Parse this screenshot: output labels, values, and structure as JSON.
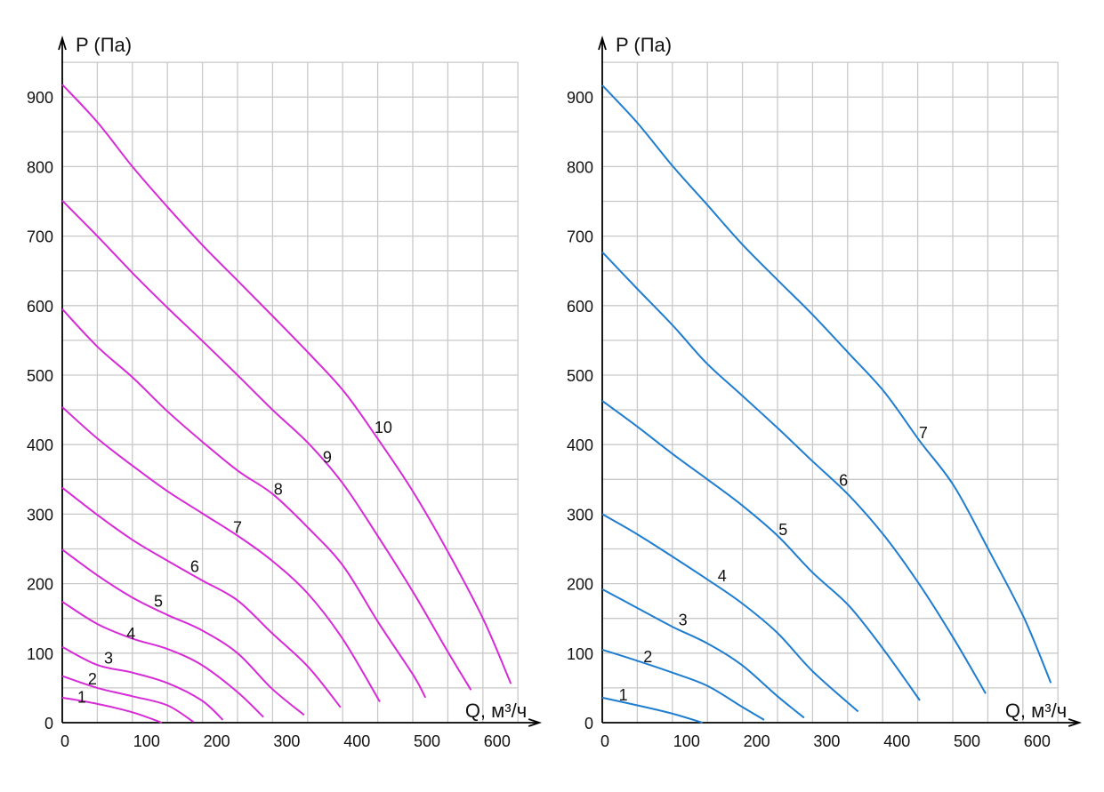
{
  "chart_data": [
    {
      "type": "line",
      "title": "",
      "xlabel": "Q, м³/ч",
      "ylabel": "P (Па)",
      "xlim": [
        0,
        650
      ],
      "ylim": [
        0,
        950
      ],
      "xticks": [
        "0",
        "100",
        "200",
        "300",
        "400",
        "500",
        "600"
      ],
      "yticks": [
        "0",
        "100",
        "200",
        "300",
        "400",
        "500",
        "600",
        "700",
        "800",
        "900"
      ],
      "grid": true,
      "color": "#d62bd6",
      "series": [
        {
          "name": "1",
          "label_at": [
            28,
            38
          ],
          "points": [
            [
              0,
              36
            ],
            [
              50,
              27
            ],
            [
              100,
              15
            ],
            [
              142,
              0
            ]
          ]
        },
        {
          "name": "2",
          "label_at": [
            43,
            64
          ],
          "points": [
            [
              0,
              67
            ],
            [
              50,
              50
            ],
            [
              100,
              38
            ],
            [
              150,
              25
            ],
            [
              187,
              1
            ]
          ]
        },
        {
          "name": "3",
          "label_at": [
            66,
            94
          ],
          "points": [
            [
              0,
              109
            ],
            [
              50,
              83
            ],
            [
              100,
              72
            ],
            [
              150,
              57
            ],
            [
              199,
              32
            ],
            [
              229,
              4
            ]
          ]
        },
        {
          "name": "4",
          "label_at": [
            98,
            129
          ],
          "points": [
            [
              0,
              174
            ],
            [
              50,
              142
            ],
            [
              100,
              121
            ],
            [
              150,
              106
            ],
            [
              199,
              83
            ],
            [
              250,
              44
            ],
            [
              287,
              8
            ]
          ]
        },
        {
          "name": "5",
          "label_at": [
            137,
            176
          ],
          "points": [
            [
              0,
              249
            ],
            [
              50,
              212
            ],
            [
              100,
              180
            ],
            [
              150,
              155
            ],
            [
              199,
              133
            ],
            [
              250,
              100
            ],
            [
              299,
              49
            ],
            [
              345,
              11
            ]
          ]
        },
        {
          "name": "6",
          "label_at": [
            189,
            226
          ],
          "points": [
            [
              0,
              338
            ],
            [
              50,
              299
            ],
            [
              100,
              263
            ],
            [
              150,
              233
            ],
            [
              199,
              205
            ],
            [
              250,
              176
            ],
            [
              299,
              129
            ],
            [
              351,
              80
            ],
            [
              397,
              22
            ]
          ]
        },
        {
          "name": "7",
          "label_at": [
            250,
            282
          ],
          "points": [
            [
              0,
              454
            ],
            [
              51,
              408
            ],
            [
              101,
              369
            ],
            [
              150,
              333
            ],
            [
              200,
              301
            ],
            [
              250,
              269
            ],
            [
              298,
              234
            ],
            [
              350,
              186
            ],
            [
              401,
              119
            ],
            [
              453,
              30
            ]
          ]
        },
        {
          "name": "8",
          "label_at": [
            308,
            337
          ],
          "points": [
            [
              0,
              595
            ],
            [
              51,
              540
            ],
            [
              101,
              496
            ],
            [
              150,
              448
            ],
            [
              200,
              404
            ],
            [
              251,
              362
            ],
            [
              300,
              329
            ],
            [
              351,
              280
            ],
            [
              401,
              225
            ],
            [
              451,
              144
            ],
            [
              501,
              68
            ],
            [
              518,
              36
            ]
          ]
        },
        {
          "name": "9",
          "label_at": [
            378,
            383
          ],
          "points": [
            [
              0,
              751
            ],
            [
              51,
              699
            ],
            [
              101,
              646
            ],
            [
              150,
              597
            ],
            [
              200,
              549
            ],
            [
              251,
              499
            ],
            [
              300,
              450
            ],
            [
              352,
              401
            ],
            [
              401,
              343
            ],
            [
              451,
              267
            ],
            [
              501,
              187
            ],
            [
              550,
              102
            ],
            [
              583,
              47
            ]
          ]
        },
        {
          "name": "10",
          "label_at": [
            458,
            426
          ],
          "points": [
            [
              0,
              918
            ],
            [
              50,
              864
            ],
            [
              100,
              800
            ],
            [
              150,
              742
            ],
            [
              200,
              687
            ],
            [
              250,
              636
            ],
            [
              300,
              585
            ],
            [
              353,
              530
            ],
            [
              403,
              475
            ],
            [
              451,
              407
            ],
            [
              500,
              333
            ],
            [
              550,
              246
            ],
            [
              601,
              148
            ],
            [
              640,
              56
            ]
          ]
        }
      ]
    },
    {
      "type": "line",
      "title": "",
      "xlabel": "Q, м³/ч",
      "ylabel": "P (Па)",
      "xlim": [
        0,
        650
      ],
      "ylim": [
        0,
        950
      ],
      "xticks": [
        "0",
        "100",
        "200",
        "300",
        "400",
        "500",
        "600"
      ],
      "yticks": [
        "0",
        "100",
        "200",
        "300",
        "400",
        "500",
        "600",
        "700",
        "800",
        "900"
      ],
      "grid": true,
      "color": "#1f7dd0",
      "series": [
        {
          "name": "1",
          "label_at": [
            30,
            41
          ],
          "points": [
            [
              0,
              36
            ],
            [
              50,
              25
            ],
            [
              100,
              13
            ],
            [
              143,
              0
            ]
          ]
        },
        {
          "name": "2",
          "label_at": [
            65,
            96
          ],
          "points": [
            [
              0,
              105
            ],
            [
              50,
              89
            ],
            [
              100,
              72
            ],
            [
              150,
              53
            ],
            [
              199,
              23
            ],
            [
              231,
              4
            ]
          ]
        },
        {
          "name": "3",
          "label_at": [
            115,
            149
          ],
          "points": [
            [
              0,
              192
            ],
            [
              50,
              165
            ],
            [
              100,
              138
            ],
            [
              150,
              114
            ],
            [
              199,
              83
            ],
            [
              250,
              38
            ],
            [
              288,
              7
            ]
          ]
        },
        {
          "name": "4",
          "label_at": [
            171,
            212
          ],
          "points": [
            [
              0,
              300
            ],
            [
              50,
              271
            ],
            [
              100,
              239
            ],
            [
              150,
              206
            ],
            [
              199,
              172
            ],
            [
              250,
              129
            ],
            [
              300,
              74
            ],
            [
              365,
              16
            ]
          ]
        },
        {
          "name": "5",
          "label_at": [
            258,
            279
          ],
          "points": [
            [
              0,
              463
            ],
            [
              50,
              426
            ],
            [
              101,
              386
            ],
            [
              150,
              350
            ],
            [
              199,
              313
            ],
            [
              250,
              269
            ],
            [
              300,
              216
            ],
            [
              352,
              168
            ],
            [
              403,
              103
            ],
            [
              453,
              32
            ]
          ]
        },
        {
          "name": "6",
          "label_at": [
            344,
            350
          ],
          "points": [
            [
              0,
              677
            ],
            [
              50,
              624
            ],
            [
              101,
              571
            ],
            [
              148,
              518
            ],
            [
              198,
              472
            ],
            [
              250,
              424
            ],
            [
              299,
              377
            ],
            [
              352,
              327
            ],
            [
              403,
              268
            ],
            [
              453,
              198
            ],
            [
              502,
              120
            ],
            [
              547,
              42
            ]
          ]
        },
        {
          "name": "7",
          "label_at": [
            458,
            418
          ],
          "points": [
            [
              0,
              917
            ],
            [
              50,
              863
            ],
            [
              101,
              800
            ],
            [
              148,
              747
            ],
            [
              198,
              690
            ],
            [
              250,
              637
            ],
            [
              299,
              588
            ],
            [
              352,
              531
            ],
            [
              403,
              475
            ],
            [
              453,
              405
            ],
            [
              502,
              340
            ],
            [
              552,
              247
            ],
            [
              602,
              150
            ],
            [
              640,
              57
            ]
          ]
        }
      ]
    }
  ]
}
